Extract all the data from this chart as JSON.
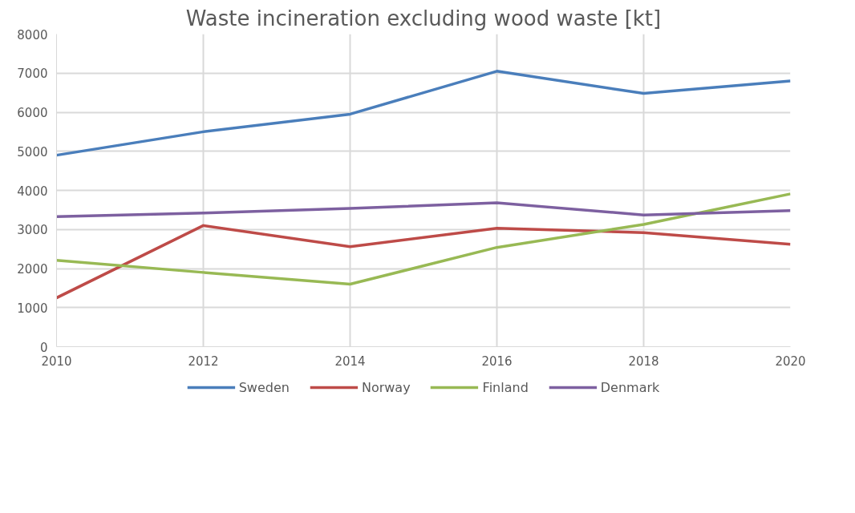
{
  "chart_data": {
    "type": "line",
    "title": "Waste incineration excluding wood waste [kt]",
    "x": [
      2010,
      2012,
      2014,
      2016,
      2018,
      2020
    ],
    "series": [
      {
        "name": "Sweden",
        "color": "#4a7ebb",
        "values": [
          4900,
          5500,
          5950,
          7050,
          6480,
          6800
        ]
      },
      {
        "name": "Norway",
        "color": "#be4b48",
        "values": [
          1250,
          3100,
          2560,
          3030,
          2920,
          2620
        ]
      },
      {
        "name": "Finland",
        "color": "#98b954",
        "values": [
          2210,
          1900,
          1600,
          2540,
          3130,
          3910
        ]
      },
      {
        "name": "Denmark",
        "color": "#7d60a0",
        "values": [
          3330,
          3420,
          3540,
          3680,
          3370,
          3480
        ]
      }
    ],
    "xlim": [
      2010,
      2020
    ],
    "xticks": [
      2010,
      2012,
      2014,
      2016,
      2018,
      2020
    ],
    "ylim": [
      0,
      8000
    ],
    "yticks": [
      0,
      1000,
      2000,
      3000,
      4000,
      5000,
      6000,
      7000,
      8000
    ],
    "grid": true,
    "legend": "bottom",
    "marker": "none",
    "line_style": "solid"
  }
}
